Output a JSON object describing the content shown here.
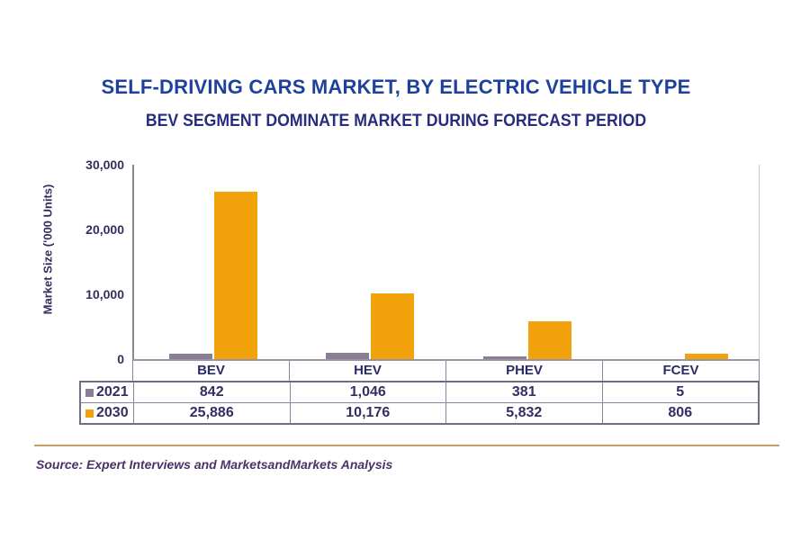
{
  "header": {
    "title": "SELF-DRIVING CARS MARKET, BY ELECTRIC VEHICLE TYPE",
    "subtitle": "BEV SEGMENT DOMINATE MARKET DURING FORECAST PERIOD"
  },
  "chart_data": {
    "type": "bar",
    "title": "SELF-DRIVING CARS MARKET, BY ELECTRIC VEHICLE TYPE",
    "subtitle": "BEV SEGMENT DOMINATE MARKET DURING FORECAST PERIOD",
    "ylabel": "Market Size ('000 Units)",
    "ylim": [
      0,
      30000
    ],
    "yticks": [
      0,
      10000,
      20000,
      30000
    ],
    "yticks_display": [
      "30,000",
      "20,000",
      "10,000",
      "0"
    ],
    "grid": false,
    "legend_position": "table-left",
    "categories": [
      "BEV",
      "HEV",
      "PHEV",
      "FCEV"
    ],
    "series": [
      {
        "name": "2021",
        "color": "#8B7E94",
        "values": [
          842,
          1046,
          381,
          5
        ],
        "values_display": [
          "842",
          "1,046",
          "381",
          "5"
        ]
      },
      {
        "name": "2030",
        "color": "#F2A30B",
        "values": [
          25886,
          10176,
          5832,
          806
        ],
        "values_display": [
          "25,886",
          "10,176",
          "5,832",
          "806"
        ]
      }
    ]
  },
  "footer": {
    "source": "Source: Expert Interviews and MarketsandMarkets Analysis"
  },
  "colors": {
    "title_blue": "#1E429B",
    "subtitle_navy": "#272C7D",
    "series_2021": "#8B7E94",
    "series_2030": "#F2A30B",
    "table_border": "#766A87",
    "divider_tan": "#C79F62",
    "source_purple": "#4B3266",
    "axis_gray": "#8A8A92",
    "text_navy": "#332F62"
  }
}
